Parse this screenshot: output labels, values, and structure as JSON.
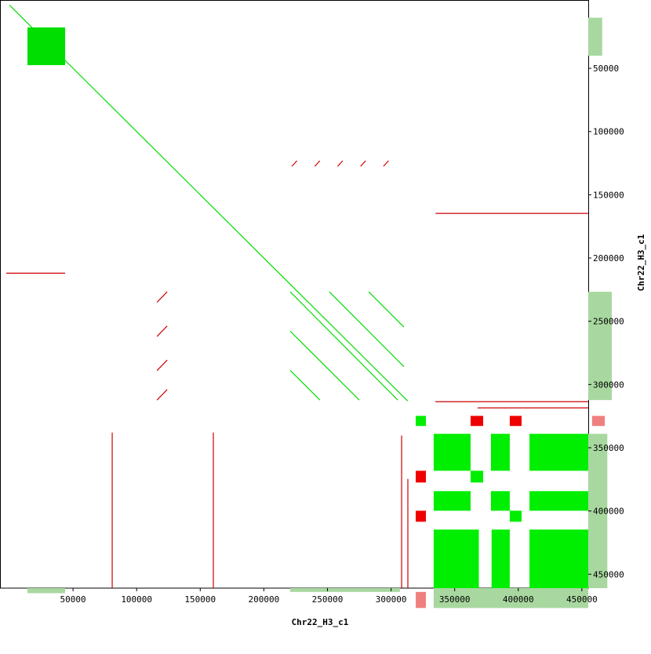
{
  "chart_data": {
    "type": "dotplot",
    "x_label": "Chr22_H3_c1",
    "y_label": "Chr22_H3_c1",
    "xlim": [
      -7400,
      455000
    ],
    "ylim": [
      -4000,
      461000
    ],
    "xticks": [
      50000,
      100000,
      150000,
      200000,
      250000,
      300000,
      350000,
      400000,
      450000
    ],
    "yticks": [
      50000,
      100000,
      150000,
      200000,
      250000,
      300000,
      350000,
      400000,
      450000
    ],
    "segments": [
      {
        "x": [
          0,
          313000
        ],
        "y": [
          0,
          313000
        ],
        "color": "#00dd00"
      },
      {
        "x": [
          220700,
          305300
        ],
        "y": [
          226700,
          312300
        ],
        "color": "#00dd00"
      },
      {
        "x": [
          251500,
          310100
        ],
        "y": [
          226700,
          285900
        ],
        "color": "#00dd00"
      },
      {
        "x": [
          282400,
          310100
        ],
        "y": [
          226700,
          254600
        ],
        "color": "#00dd00"
      },
      {
        "x": [
          220700,
          275000
        ],
        "y": [
          257800,
          312300
        ],
        "color": "#00dd00"
      },
      {
        "x": [
          220700,
          244100
        ],
        "y": [
          288800,
          312300
        ],
        "color": "#00dd00"
      },
      {
        "x": [
          80800,
          80800
        ],
        "y": [
          338000,
          461000
        ],
        "color": "#cc0000"
      },
      {
        "x": [
          160300,
          160300
        ],
        "y": [
          338000,
          461000
        ],
        "color": "#cc0000"
      },
      {
        "x": [
          308300,
          308300
        ],
        "y": [
          340300,
          461000
        ],
        "color": "#cc0000"
      },
      {
        "x": [
          313200,
          313200
        ],
        "y": [
          374700,
          461000
        ],
        "color": "#cc0000"
      },
      {
        "x": [
          334800,
          455000
        ],
        "y": [
          313600,
          313600
        ],
        "color": "#cc0000"
      },
      {
        "x": [
          368000,
          455000
        ],
        "y": [
          318500,
          318500
        ],
        "color": "#cc0000"
      },
      {
        "x": [
          222000,
          226000
        ],
        "y": [
          127500,
          123100
        ],
        "color": "#cc0000"
      },
      {
        "x": [
          240000,
          244000
        ],
        "y": [
          127500,
          123100
        ],
        "color": "#cc0000"
      },
      {
        "x": [
          258000,
          262000
        ],
        "y": [
          127500,
          123100
        ],
        "color": "#cc0000"
      },
      {
        "x": [
          276000,
          280000
        ],
        "y": [
          127500,
          123100
        ],
        "color": "#cc0000"
      },
      {
        "x": [
          294000,
          298000
        ],
        "y": [
          127500,
          123100
        ],
        "color": "#cc0000"
      },
      {
        "x": [
          116000,
          124000
        ],
        "y": [
          235000,
          226700
        ],
        "color": "#cc0000"
      },
      {
        "x": [
          116000,
          124000
        ],
        "y": [
          262000,
          253700
        ],
        "color": "#cc0000"
      },
      {
        "x": [
          116000,
          124000
        ],
        "y": [
          289000,
          280700
        ],
        "color": "#cc0000"
      },
      {
        "x": [
          116000,
          124000
        ],
        "y": [
          312300,
          304000
        ],
        "color": "#cc0000"
      },
      {
        "x": [
          335000,
          455000
        ],
        "y": [
          164700,
          164700
        ],
        "color": "#cc0000"
      },
      {
        "x": [
          -2500,
          43800
        ],
        "y": [
          212000,
          212000
        ],
        "color": "#cc0000"
      }
    ],
    "blocks": [
      {
        "x": [
          14200,
          43800
        ],
        "y": [
          17700,
          47500
        ],
        "color": "#00dd00"
      },
      {
        "x": [
          333500,
          362500
        ],
        "y": [
          339000,
          368200
        ],
        "color": "#00ee00"
      },
      {
        "x": [
          378500,
          393300
        ],
        "y": [
          339000,
          368200
        ],
        "color": "#00ee00"
      },
      {
        "x": [
          408800,
          455000
        ],
        "y": [
          339000,
          368200
        ],
        "color": "#00ee00"
      },
      {
        "x": [
          333500,
          362500
        ],
        "y": [
          384300,
          399800
        ],
        "color": "#00ee00"
      },
      {
        "x": [
          378500,
          393300
        ],
        "y": [
          384300,
          399800
        ],
        "color": "#00ee00"
      },
      {
        "x": [
          408800,
          455000
        ],
        "y": [
          384300,
          399800
        ],
        "color": "#00ee00"
      },
      {
        "x": [
          333500,
          369000
        ],
        "y": [
          414700,
          461000
        ],
        "color": "#00ee00"
      },
      {
        "x": [
          379000,
          393300
        ],
        "y": [
          414700,
          461000
        ],
        "color": "#00ee00"
      },
      {
        "x": [
          408800,
          455000
        ],
        "y": [
          414700,
          461000
        ],
        "color": "#00ee00"
      },
      {
        "x": [
          319400,
          327400
        ],
        "y": [
          324800,
          332800
        ],
        "color": "#00ee00"
      },
      {
        "x": [
          362500,
          372400
        ],
        "y": [
          368200,
          377500
        ],
        "color": "#00ee00"
      },
      {
        "x": [
          393300,
          402600
        ],
        "y": [
          399800,
          408500
        ],
        "color": "#00ee00"
      },
      {
        "x": [
          362500,
          372400
        ],
        "y": [
          324800,
          332800
        ],
        "color": "#ee0000"
      },
      {
        "x": [
          393300,
          402600
        ],
        "y": [
          324800,
          332800
        ],
        "color": "#ee0000"
      },
      {
        "x": [
          319400,
          327400
        ],
        "y": [
          368200,
          377500
        ],
        "color": "#ee0000"
      },
      {
        "x": [
          319400,
          327400
        ],
        "y": [
          399800,
          408500
        ],
        "color": "#ee0000"
      },
      {
        "x": [
          455000,
          473500
        ],
        "y": [
          226700,
          312300
        ],
        "color": "#a8d8a0"
      },
      {
        "x": [
          455000,
          470000
        ],
        "y": [
          339000,
          461000
        ],
        "color": "#a8d8a0"
      },
      {
        "x": [
          455000,
          466000
        ],
        "y": [
          10000,
          40000
        ],
        "color": "#a8d8a0"
      },
      {
        "x": [
          14200,
          43800
        ],
        "y": [
          461000,
          465000
        ],
        "color": "#a8d8a0"
      },
      {
        "x": [
          220700,
          307000
        ],
        "y": [
          461000,
          464000
        ],
        "color": "#a8d8a0"
      },
      {
        "x": [
          333500,
          455000
        ],
        "y": [
          461000,
          476700
        ],
        "color": "#a8d8a0"
      },
      {
        "x": [
          319400,
          327400
        ],
        "y": [
          464000,
          476700
        ],
        "color": "#f08080"
      },
      {
        "x": [
          458000,
          468000
        ],
        "y": [
          324800,
          332800
        ],
        "color": "#f08080"
      }
    ]
  }
}
